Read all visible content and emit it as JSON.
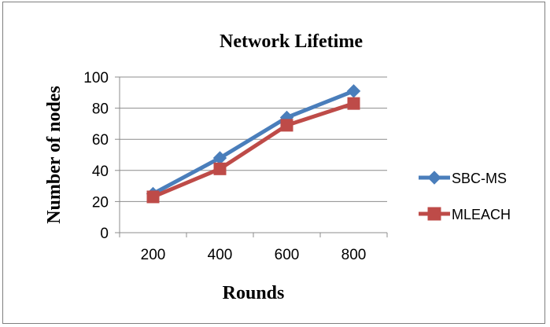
{
  "chart_data": {
    "type": "line",
    "title": "Network Lifetime",
    "xlabel": "Rounds",
    "ylabel": "Number of nodes",
    "categories": [
      "200",
      "400",
      "600",
      "800"
    ],
    "ylim": [
      0,
      100
    ],
    "yticks": [
      0,
      20,
      40,
      60,
      80,
      100
    ],
    "grid": "horizontal",
    "legend_position": "right",
    "series": [
      {
        "name": "SBC-MS",
        "values": [
          25,
          48,
          74,
          91
        ],
        "color": "#4a7ebb",
        "marker": "diamond"
      },
      {
        "name": "MLEACH",
        "values": [
          23,
          41,
          69,
          83
        ],
        "color": "#be4b48",
        "marker": "square"
      }
    ]
  }
}
